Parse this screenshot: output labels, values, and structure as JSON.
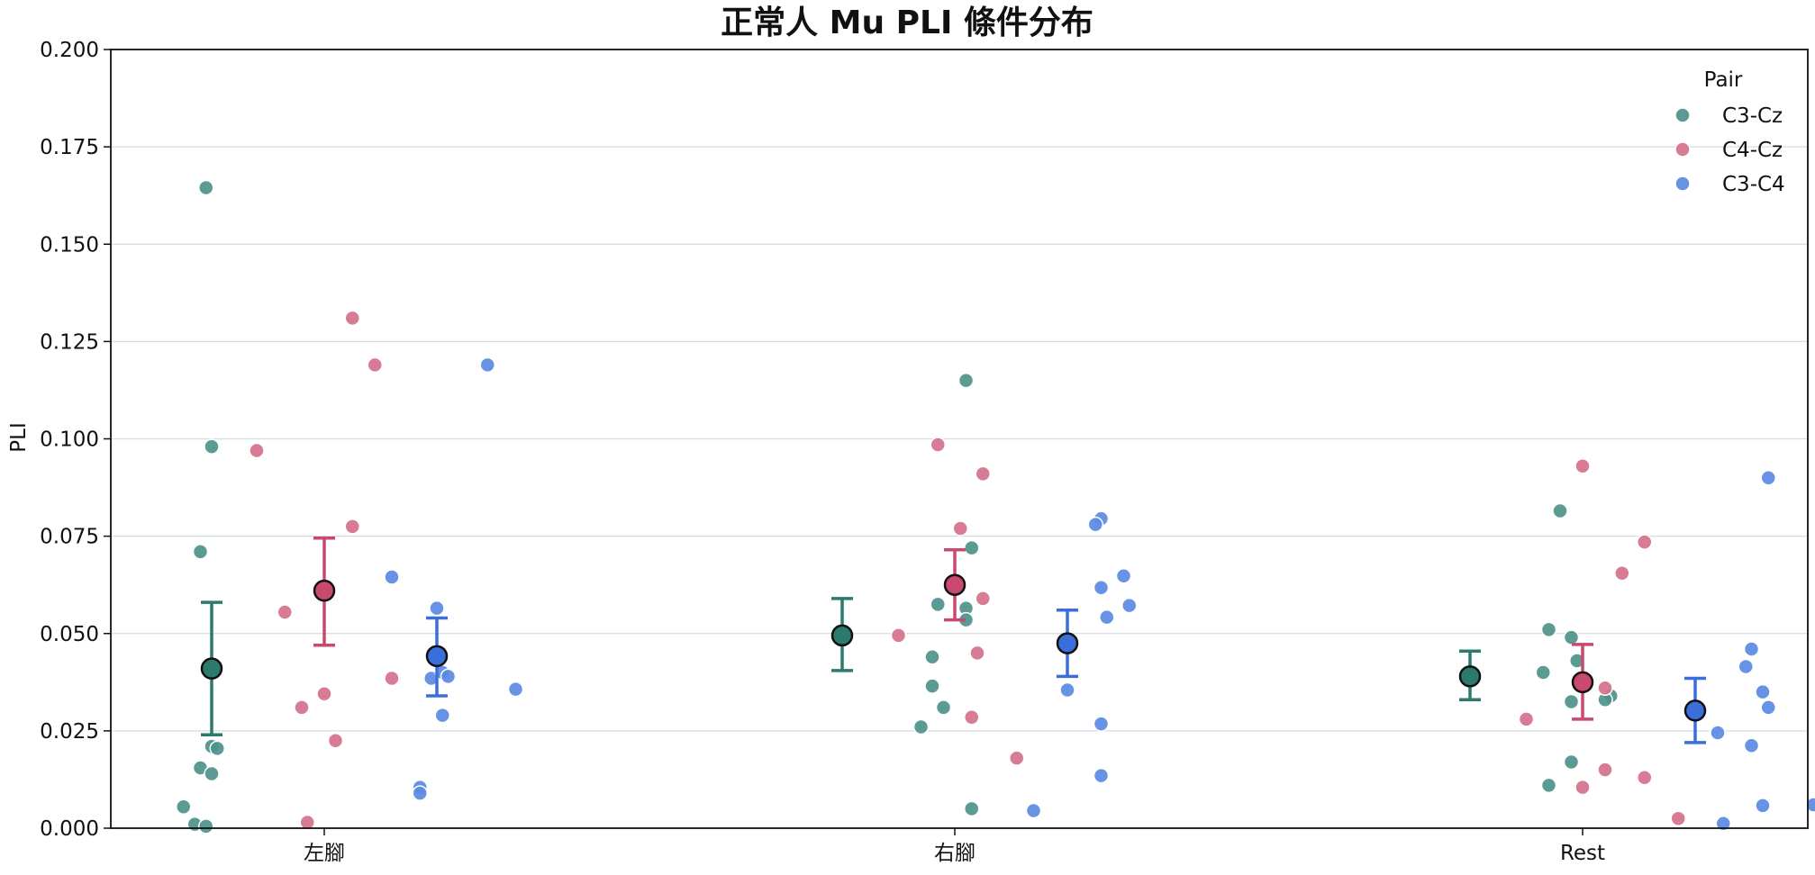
{
  "chart_data": {
    "type": "scatter",
    "title": "正常人 Mu PLI 條件分布",
    "xlabel": "",
    "ylabel": "PLI",
    "categories": [
      "左腳",
      "右腳",
      "Rest"
    ],
    "ylim": [
      0,
      0.2
    ],
    "yticks": [
      "0.000",
      "0.025",
      "0.050",
      "0.075",
      "0.100",
      "0.125",
      "0.150",
      "0.175",
      "0.200"
    ],
    "grid": "horizontal",
    "legend": {
      "title": "Pair",
      "position": "top-right"
    },
    "series": [
      {
        "name": "C3-Cz",
        "color": "#4e938a",
        "mean_color": "#2c7a6e",
        "points": [
          [
            [
              -0.21,
              0.1645
            ],
            [
              -0.2,
              0.098
            ],
            [
              -0.22,
              0.071
            ],
            [
              -0.22,
              0.0155
            ],
            [
              -0.2,
              0.021
            ],
            [
              -0.19,
              0.0205
            ],
            [
              -0.2,
              0.014
            ],
            [
              -0.25,
              0.0055
            ],
            [
              -0.23,
              0.001
            ],
            [
              -0.21,
              0.0005
            ]
          ],
          [
            [
              0.02,
              0.115
            ],
            [
              0.03,
              0.072
            ],
            [
              -0.03,
              0.0575
            ],
            [
              0.02,
              0.0565
            ],
            [
              0.02,
              0.0535
            ],
            [
              -0.04,
              0.044
            ],
            [
              -0.04,
              0.0365
            ],
            [
              -0.02,
              0.031
            ],
            [
              -0.06,
              0.026
            ],
            [
              0.03,
              0.005
            ]
          ],
          [
            [
              -0.04,
              0.0815
            ],
            [
              -0.06,
              0.051
            ],
            [
              -0.02,
              0.049
            ],
            [
              -0.01,
              0.043
            ],
            [
              -0.07,
              0.04
            ],
            [
              -0.02,
              0.0325
            ],
            [
              0.05,
              0.034
            ],
            [
              0.04,
              0.033
            ],
            [
              -0.02,
              0.017
            ],
            [
              -0.06,
              0.011
            ]
          ]
        ],
        "means": [
          0.041,
          0.0495,
          0.039
        ],
        "err_low": [
          0.024,
          0.0405,
          0.033
        ],
        "err_high": [
          0.058,
          0.059,
          0.0455
        ]
      },
      {
        "name": "C4-Cz",
        "color": "#d5708b",
        "mean_color": "#c94a6e",
        "points": [
          [
            [
              0.05,
              0.131
            ],
            [
              0.09,
              0.119
            ],
            [
              -0.12,
              0.097
            ],
            [
              0.05,
              0.0775
            ],
            [
              -0.07,
              0.0555
            ],
            [
              0.12,
              0.0385
            ],
            [
              0.0,
              0.0345
            ],
            [
              -0.04,
              0.031
            ],
            [
              0.02,
              0.0225
            ],
            [
              -0.03,
              0.0015
            ]
          ],
          [
            [
              -0.03,
              0.0985
            ],
            [
              0.05,
              0.091
            ],
            [
              0.01,
              0.077
            ],
            [
              0.05,
              0.059
            ],
            [
              -0.1,
              0.0495
            ],
            [
              0.04,
              0.045
            ],
            [
              0.03,
              0.0285
            ],
            [
              0.11,
              0.018
            ]
          ],
          [
            [
              0.0,
              0.093
            ],
            [
              0.11,
              0.0735
            ],
            [
              0.07,
              0.0655
            ],
            [
              0.04,
              0.036
            ],
            [
              -0.1,
              0.028
            ],
            [
              0.04,
              0.015
            ],
            [
              0.0,
              0.0105
            ],
            [
              0.11,
              0.013
            ],
            [
              0.17,
              0.0025
            ]
          ]
        ],
        "means": [
          0.061,
          0.0625,
          0.0375
        ],
        "err_low": [
          0.047,
          0.0535,
          0.028
        ],
        "err_high": [
          0.0745,
          0.0715,
          0.0472
        ]
      },
      {
        "name": "C3-C4",
        "color": "#5b8ae3",
        "mean_color": "#3a6fdb",
        "points": [
          [
            [
              0.29,
              0.119
            ],
            [
              0.12,
              0.0645
            ],
            [
              0.2,
              0.0565
            ],
            [
              0.19,
              0.0385
            ],
            [
              0.21,
              0.04
            ],
            [
              0.22,
              0.039
            ],
            [
              0.34,
              0.0357
            ],
            [
              0.21,
              0.029
            ],
            [
              0.17,
              0.0105
            ],
            [
              0.17,
              0.009
            ]
          ],
          [
            [
              0.26,
              0.0795
            ],
            [
              0.25,
              0.078
            ],
            [
              0.3,
              0.0648
            ],
            [
              0.26,
              0.0618
            ],
            [
              0.31,
              0.0572
            ],
            [
              0.27,
              0.0542
            ],
            [
              0.2,
              0.0355
            ],
            [
              0.26,
              0.0268
            ],
            [
              0.26,
              0.0135
            ],
            [
              0.14,
              0.0045
            ]
          ],
          [
            [
              0.33,
              0.09
            ],
            [
              0.3,
              0.046
            ],
            [
              0.29,
              0.0415
            ],
            [
              0.32,
              0.035
            ],
            [
              0.33,
              0.031
            ],
            [
              0.24,
              0.0245
            ],
            [
              0.3,
              0.0212
            ],
            [
              0.32,
              0.0058
            ],
            [
              0.41,
              0.006
            ],
            [
              0.25,
              0.0012
            ]
          ]
        ],
        "means": [
          0.0442,
          0.0475,
          0.0302
        ],
        "err_low": [
          0.034,
          0.039,
          0.022
        ],
        "err_high": [
          0.054,
          0.056,
          0.0385
        ]
      }
    ]
  }
}
